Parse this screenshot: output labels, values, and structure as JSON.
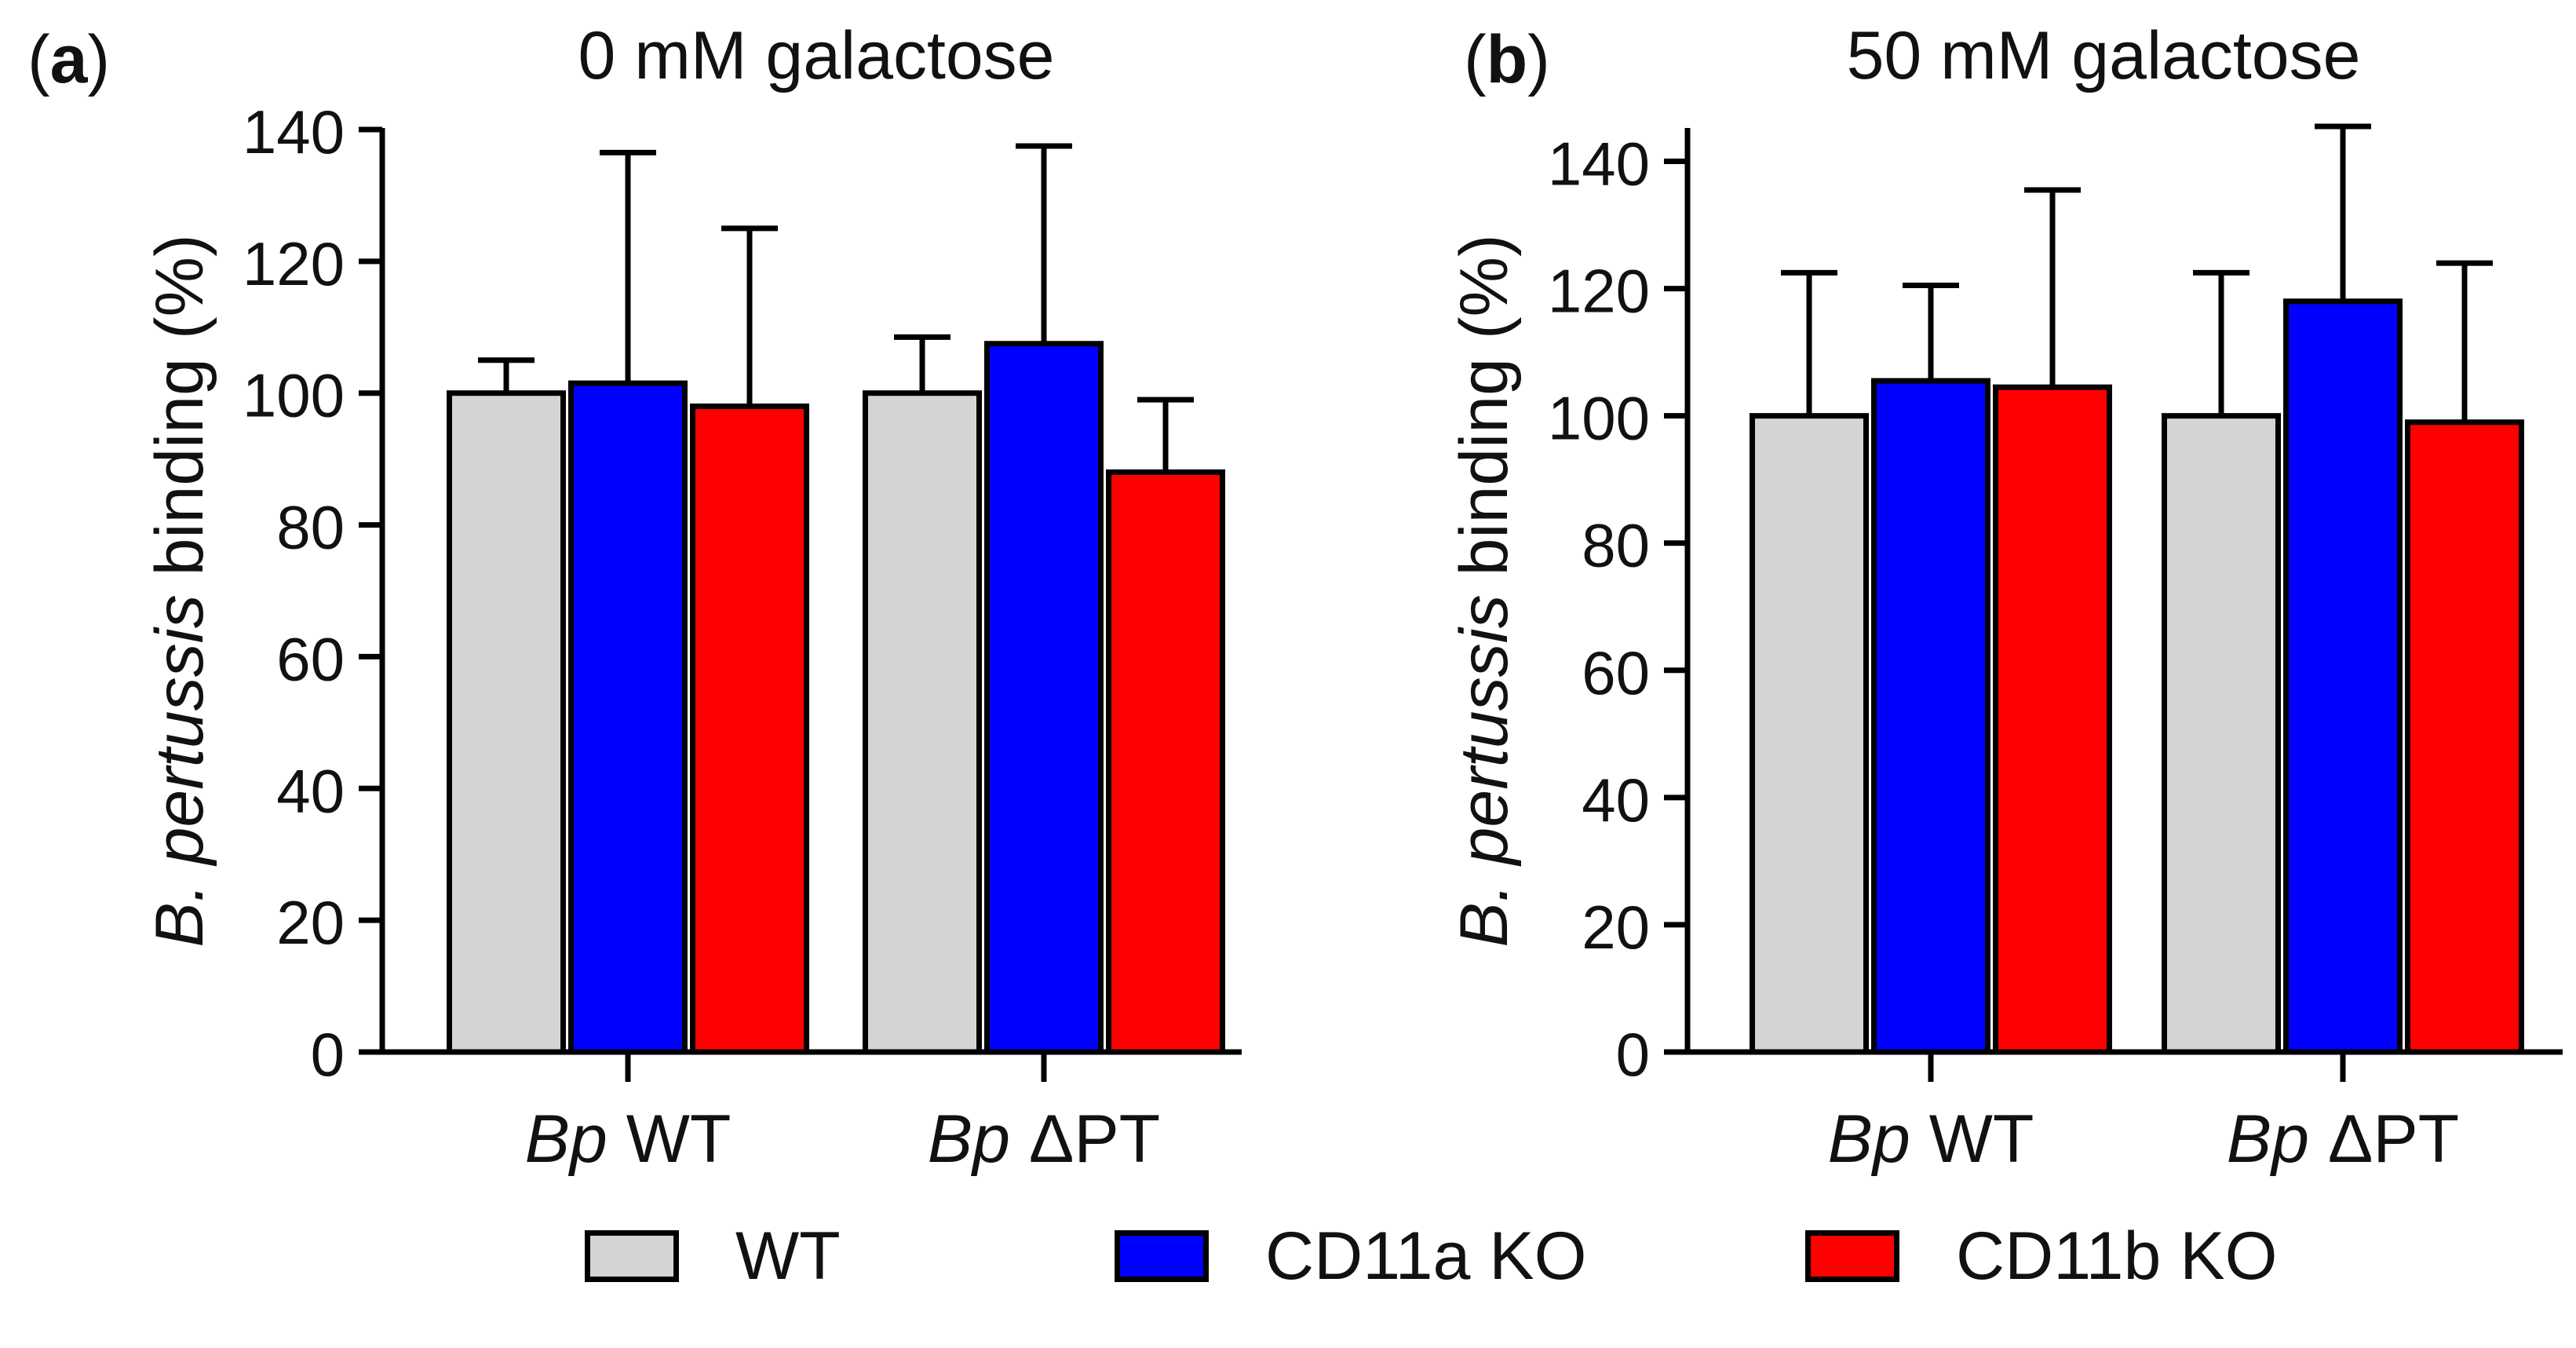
{
  "chart_data": [
    {
      "type": "bar",
      "panel_label": "a",
      "title": "0 mM galactose",
      "ylabel_italic": "B. pertussis",
      "ylabel_rest": " binding (%)",
      "ylim": [
        0,
        140
      ],
      "yticks": [
        0,
        20,
        40,
        60,
        80,
        100,
        120,
        140
      ],
      "categories": [
        {
          "italic": "Bp",
          "rest": " WT"
        },
        {
          "italic": "Bp",
          "rest": " ΔPT"
        }
      ],
      "series": [
        {
          "name": "WT",
          "values": [
            100,
            100
          ],
          "errors": [
            5,
            8.5
          ]
        },
        {
          "name": "CD11a KO",
          "values": [
            101.5,
            107.5
          ],
          "errors": [
            35,
            30
          ]
        },
        {
          "name": "CD11b KO",
          "values": [
            98,
            88
          ],
          "errors": [
            27,
            11
          ]
        }
      ]
    },
    {
      "type": "bar",
      "panel_label": "b",
      "title": "50 mM galactose",
      "ylabel_italic": "B. pertussis",
      "ylabel_rest": " binding (%)",
      "ylim": [
        0,
        145
      ],
      "yticks": [
        0,
        20,
        40,
        60,
        80,
        100,
        120,
        140
      ],
      "categories": [
        {
          "italic": "Bp",
          "rest": " WT"
        },
        {
          "italic": "Bp",
          "rest": " ΔPT"
        }
      ],
      "series": [
        {
          "name": "WT",
          "values": [
            100,
            100
          ],
          "errors": [
            22.5,
            22.5
          ]
        },
        {
          "name": "CD11a KO",
          "values": [
            105.5,
            118
          ],
          "errors": [
            15,
            27.5
          ]
        },
        {
          "name": "CD11b KO",
          "values": [
            104.5,
            99
          ],
          "errors": [
            31,
            25
          ]
        }
      ]
    }
  ],
  "legend": [
    {
      "label": "WT",
      "color": "#d4d4d4"
    },
    {
      "label": "CD11a KO",
      "color": "#0000ff"
    },
    {
      "label": "CD11b KO",
      "color": "#ff0000"
    }
  ]
}
